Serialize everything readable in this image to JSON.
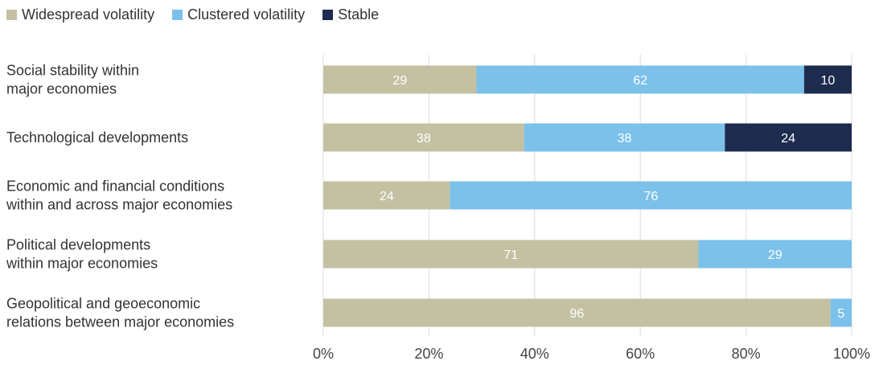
{
  "legend": [
    {
      "label": "Widespread volatility",
      "color": "#c3c1a2"
    },
    {
      "label": "Clustered volatility",
      "color": "#7cc1ea"
    },
    {
      "label": "Stable",
      "color": "#1d2b4f"
    }
  ],
  "chart_data": {
    "type": "bar",
    "orientation": "horizontal",
    "stacked": true,
    "categories": [
      [
        "Social stability within",
        "major economies"
      ],
      [
        "Technological developments"
      ],
      [
        "Economic and financial conditions",
        "within and across major economies"
      ],
      [
        "Political developments",
        "within major economies"
      ],
      [
        "Geopolitical and geoeconomic",
        "relations between major economies"
      ]
    ],
    "series": [
      {
        "name": "Widespread volatility",
        "color": "#c3c1a2",
        "values": [
          29,
          38,
          24,
          71,
          96
        ],
        "value_labels": [
          "29",
          "38",
          "24",
          "71",
          "96"
        ]
      },
      {
        "name": "Clustered volatility",
        "color": "#7cc1ea",
        "values": [
          62,
          38,
          76,
          29,
          5
        ],
        "value_labels": [
          "62",
          "38",
          "76",
          "29",
          "5"
        ]
      },
      {
        "name": "Stable",
        "color": "#1d2b4f",
        "values": [
          10,
          24,
          0,
          0,
          0
        ],
        "value_labels": [
          "10",
          "24",
          "",
          "",
          ""
        ]
      }
    ],
    "xlim": [
      0,
      100
    ],
    "xticks": [
      0,
      20,
      40,
      60,
      80,
      100
    ],
    "xtick_labels": [
      "0%",
      "20%",
      "40%",
      "60%",
      "80%",
      "100%"
    ],
    "grid": true,
    "legend_position": "top-left"
  }
}
